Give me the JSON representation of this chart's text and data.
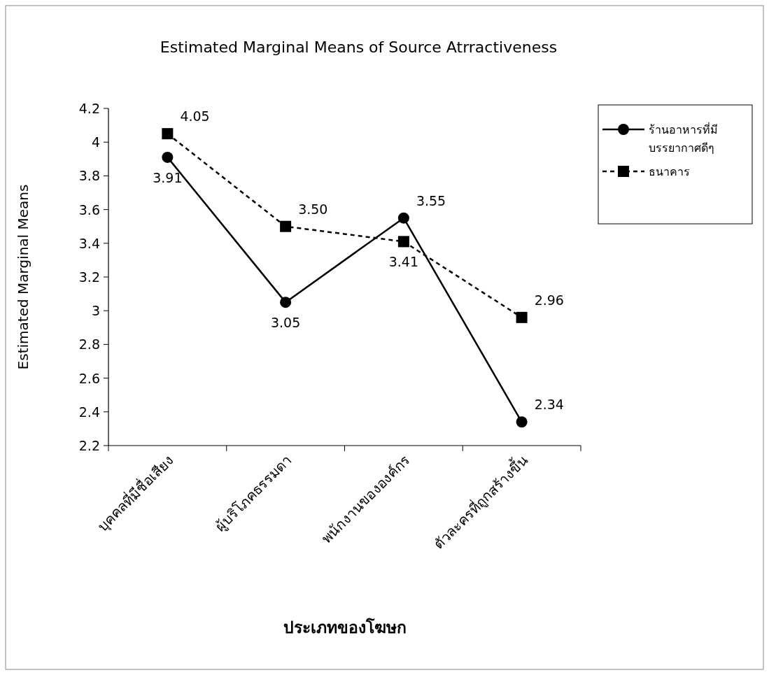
{
  "chart_data": {
    "type": "line",
    "title": "Estimated Marginal Means of Source Atrractiveness",
    "xlabel": "ประเภทของโฆษก",
    "ylabel": "Estimated Marginal Means",
    "categories": [
      "บุคคลที่มีชื่อเสียง",
      "ผู้บริโภคธรรมดา",
      "พนักงานขององค์กร",
      "ตัวละครที่ถูกสร้างขึ้น"
    ],
    "series": [
      {
        "name": "ร้านอาหารที่มีบรรยากาศดีๆ",
        "color": "#000000",
        "values": [
          3.91,
          3.05,
          3.55,
          2.34
        ],
        "value_labels": [
          "3.91",
          "3.05",
          "3.55",
          "2.34"
        ],
        "marker": "circle",
        "line_style": "solid"
      },
      {
        "name": "ธนาคาร",
        "color": "#000000",
        "values": [
          4.05,
          3.5,
          3.41,
          2.96
        ],
        "value_labels": [
          "4.05",
          "3.50",
          "3.41",
          "2.96"
        ],
        "marker": "square",
        "line_style": "dashed"
      }
    ],
    "ylim": [
      2.2,
      4.2
    ],
    "yticks": [
      2.2,
      2.4,
      2.6,
      2.8,
      3,
      3.2,
      3.4,
      3.6,
      3.8,
      4,
      4.2
    ],
    "grid": false,
    "legend": "right"
  }
}
